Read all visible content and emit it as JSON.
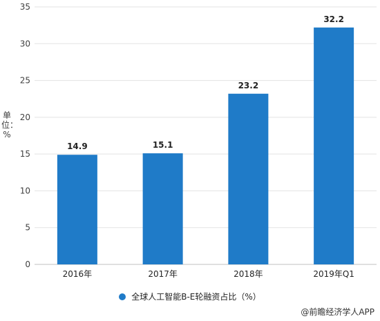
{
  "chart_data": {
    "type": "bar",
    "categories": [
      "2016年",
      "2017年",
      "2018年",
      "2019年Q1"
    ],
    "values": [
      14.9,
      15.1,
      23.2,
      32.2
    ],
    "data_labels": [
      "14.9",
      "15.1",
      "23.2",
      "32.2"
    ],
    "ylabel": "单位：%",
    "ylim": [
      0,
      35
    ],
    "yticks": [
      "0",
      "5",
      "10",
      "15",
      "20",
      "25",
      "30",
      "35"
    ],
    "ytick_values": [
      0,
      5,
      10,
      15,
      20,
      25,
      30,
      35
    ],
    "grid": "horizontal",
    "legend": {
      "label": "全球人工智能B-E轮融资占比（%）",
      "placement": "bottom"
    },
    "bar_color": "#1f7bc8"
  },
  "credit": "@前瞻经济学人APP"
}
